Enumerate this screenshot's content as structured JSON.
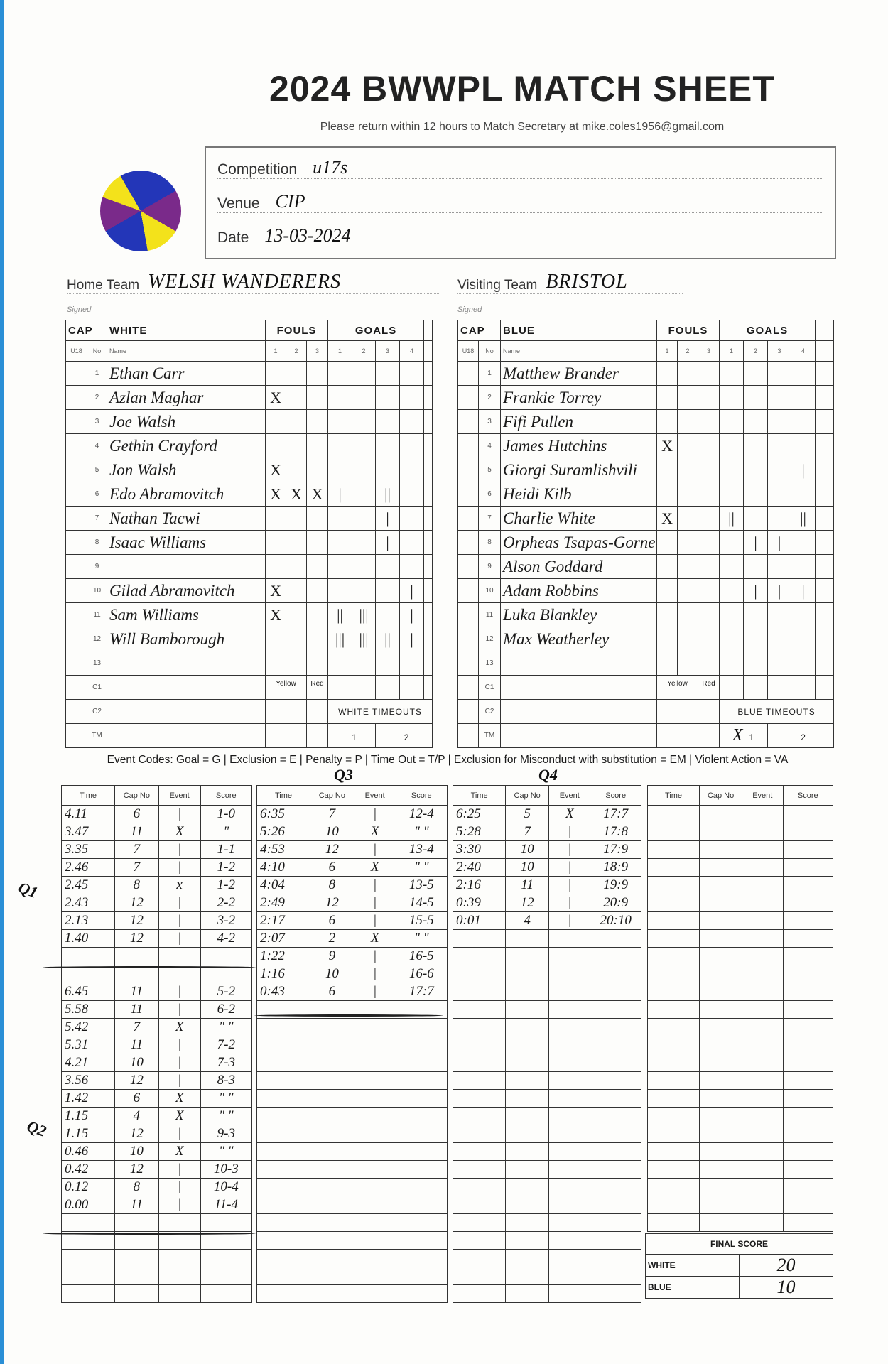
{
  "header": {
    "title": "2024 BWWPL MATCH SHEET",
    "subtitle": "Please return within 12 hours to Match Secretary  at mike.coles1956@gmail.com"
  },
  "info": {
    "competition_label": "Competition",
    "competition": "u17s",
    "venue_label": "Venue",
    "venue": "CIP",
    "date_label": "Date",
    "date": "13-03-2024"
  },
  "teams": {
    "home_label": "Home Team",
    "home": "WELSH WANDERERS",
    "visiting_label": "Visiting Team",
    "visiting": "BRISTOL",
    "signed_label": "Signed"
  },
  "colors": {
    "ball": [
      "#2336b8",
      "#7a2a8a",
      "#f3e21b"
    ]
  },
  "rosters": [
    {
      "cap_label": "CAP",
      "team_label": "WHITE",
      "fouls_label": "FOULS",
      "goals_label": "GOALS",
      "u18_label": "U18",
      "no_label": "No",
      "name_label": "Name",
      "yellow_label": "Yellow",
      "red_label": "Red",
      "timeouts_label": "WHITE TIMEOUTS",
      "timeouts": [
        "1",
        "2"
      ],
      "players": [
        {
          "no": "1",
          "name": "Ethan Carr",
          "fouls": [
            "",
            "",
            ""
          ],
          "goals": [
            "",
            "",
            "",
            ""
          ]
        },
        {
          "no": "2",
          "name": "Azlan Maghar",
          "fouls": [
            "X",
            "",
            ""
          ],
          "goals": [
            "",
            "",
            "",
            ""
          ]
        },
        {
          "no": "3",
          "name": "Joe Walsh",
          "fouls": [
            "",
            "",
            ""
          ],
          "goals": [
            "",
            "",
            "",
            ""
          ]
        },
        {
          "no": "4",
          "name": "Gethin Crayford",
          "fouls": [
            "",
            "",
            ""
          ],
          "goals": [
            "",
            "",
            "",
            ""
          ]
        },
        {
          "no": "5",
          "name": "Jon Walsh",
          "fouls": [
            "X",
            "",
            ""
          ],
          "goals": [
            "",
            "",
            "",
            ""
          ]
        },
        {
          "no": "6",
          "name": "Edo Abramovitch",
          "fouls": [
            "X",
            "X",
            "X"
          ],
          "goals": [
            "|",
            "",
            "||",
            ""
          ]
        },
        {
          "no": "7",
          "name": "Nathan Tacwi",
          "fouls": [
            "",
            "",
            ""
          ],
          "goals": [
            "",
            "",
            "|",
            ""
          ]
        },
        {
          "no": "8",
          "name": "Isaac Williams",
          "fouls": [
            "",
            "",
            ""
          ],
          "goals": [
            "",
            "",
            "|",
            ""
          ]
        },
        {
          "no": "9",
          "name": "",
          "fouls": [
            "",
            "",
            ""
          ],
          "goals": [
            "",
            "",
            "",
            ""
          ]
        },
        {
          "no": "10",
          "name": "Gilad Abramovitch",
          "fouls": [
            "X",
            "",
            ""
          ],
          "goals": [
            "",
            "",
            "",
            "|"
          ]
        },
        {
          "no": "11",
          "name": "Sam Williams",
          "fouls": [
            "X",
            "",
            ""
          ],
          "goals": [
            "||",
            "|||",
            "",
            "|"
          ]
        },
        {
          "no": "12",
          "name": "Will Bamborough",
          "fouls": [
            "",
            "",
            ""
          ],
          "goals": [
            "|||",
            "|||",
            "||",
            "|"
          ]
        },
        {
          "no": "13",
          "name": "",
          "fouls": [
            "",
            "",
            ""
          ],
          "goals": [
            "",
            "",
            "",
            ""
          ]
        }
      ],
      "staff": [
        "C1",
        "C2",
        "TM"
      ],
      "timeout_marks": [
        "",
        ""
      ]
    },
    {
      "cap_label": "CAP",
      "team_label": "BLUE",
      "fouls_label": "FOULS",
      "goals_label": "GOALS",
      "u18_label": "U18",
      "no_label": "No",
      "name_label": "Name",
      "yellow_label": "Yellow",
      "red_label": "Red",
      "timeouts_label": "BLUE TIMEOUTS",
      "timeouts": [
        "1",
        "2"
      ],
      "players": [
        {
          "no": "1",
          "name": "Matthew Brander",
          "fouls": [
            "",
            "",
            ""
          ],
          "goals": [
            "",
            "",
            "",
            ""
          ]
        },
        {
          "no": "2",
          "name": "Frankie Torrey",
          "fouls": [
            "",
            "",
            ""
          ],
          "goals": [
            "",
            "",
            "",
            ""
          ]
        },
        {
          "no": "3",
          "name": "Fifi Pullen",
          "fouls": [
            "",
            "",
            ""
          ],
          "goals": [
            "",
            "",
            "",
            ""
          ]
        },
        {
          "no": "4",
          "name": "James Hutchins",
          "fouls": [
            "X",
            "",
            ""
          ],
          "goals": [
            "",
            "",
            "",
            ""
          ]
        },
        {
          "no": "5",
          "name": "Giorgi Suramlishvili",
          "fouls": [
            "",
            "",
            ""
          ],
          "goals": [
            "",
            "",
            "",
            "|"
          ]
        },
        {
          "no": "6",
          "name": "Heidi Kilb",
          "fouls": [
            "",
            "",
            ""
          ],
          "goals": [
            "",
            "",
            "",
            ""
          ]
        },
        {
          "no": "7",
          "name": "Charlie White",
          "fouls": [
            "X",
            "",
            ""
          ],
          "goals": [
            "||",
            "",
            "",
            "||"
          ]
        },
        {
          "no": "8",
          "name": "Orpheas Tsapas-Gornelis",
          "fouls": [
            "",
            "",
            ""
          ],
          "goals": [
            "",
            "|",
            "|",
            ""
          ]
        },
        {
          "no": "9",
          "name": "Alson Goddard",
          "fouls": [
            "",
            "",
            ""
          ],
          "goals": [
            "",
            "",
            "",
            ""
          ]
        },
        {
          "no": "10",
          "name": "Adam Robbins",
          "fouls": [
            "",
            "",
            ""
          ],
          "goals": [
            "",
            "|",
            "|",
            "|"
          ]
        },
        {
          "no": "11",
          "name": "Luka Blankley",
          "fouls": [
            "",
            "",
            ""
          ],
          "goals": [
            "",
            "",
            "",
            ""
          ]
        },
        {
          "no": "12",
          "name": "Max Weatherley",
          "fouls": [
            "",
            "",
            ""
          ],
          "goals": [
            "",
            "",
            "",
            ""
          ]
        },
        {
          "no": "13",
          "name": "",
          "fouls": [
            "",
            "",
            ""
          ],
          "goals": [
            "",
            "",
            "",
            ""
          ]
        }
      ],
      "staff": [
        "C1",
        "C2",
        "TM"
      ],
      "timeout_marks": [
        "X",
        ""
      ]
    }
  ],
  "event_codes": "Event Codes: Goal = G | Exclusion = E | Penalty = P | Time Out = T/P | Exclusion for Misconduct with substitution = EM | Violent Action = VA",
  "quarter_labels": {
    "q1": "Q1",
    "q2": "Q2",
    "q3": "Q3",
    "q4": "Q4"
  },
  "event_headers": [
    "Time",
    "Cap No",
    "Event",
    "Score"
  ],
  "event_tables": [
    {
      "rows": [
        [
          "4.11",
          "6",
          "|",
          "1-0"
        ],
        [
          "3.47",
          "11",
          "X",
          "\""
        ],
        [
          "3.35",
          "7",
          "|",
          "1-1"
        ],
        [
          "2.46",
          "7",
          "|",
          "1-2"
        ],
        [
          "2.45",
          "8",
          "x",
          "1-2"
        ],
        [
          "2.43",
          "12",
          "|",
          "2-2"
        ],
        [
          "2.13",
          "12",
          "|",
          "3-2"
        ],
        [
          "1.40",
          "12",
          "|",
          "4-2"
        ],
        [
          "",
          "",
          "",
          ""
        ],
        [
          "",
          "",
          "",
          ""
        ],
        [
          "6.45",
          "11",
          "|",
          "5-2"
        ],
        [
          "5.58",
          "11",
          "|",
          "6-2"
        ],
        [
          "5.42",
          "7",
          "X",
          "\" \""
        ],
        [
          "5.31",
          "11",
          "|",
          "7-2"
        ],
        [
          "4.21",
          "10",
          "|",
          "7-3"
        ],
        [
          "3.56",
          "12",
          "|",
          "8-3"
        ],
        [
          "1.42",
          "6",
          "X",
          "\" \""
        ],
        [
          "1.15",
          "4",
          "X",
          "\" \""
        ],
        [
          "1.15",
          "12",
          "|",
          "9-3"
        ],
        [
          "0.46",
          "10",
          "X",
          "\" \""
        ],
        [
          "0.42",
          "12",
          "|",
          "10-3"
        ],
        [
          "0.12",
          "8",
          "|",
          "10-4"
        ],
        [
          "0.00",
          "11",
          "|",
          "11-4"
        ]
      ],
      "total_rows": 28
    },
    {
      "rows": [
        [
          "6:35",
          "7",
          "|",
          "12-4"
        ],
        [
          "5:26",
          "10",
          "X",
          "\" \""
        ],
        [
          "4:53",
          "12",
          "|",
          "13-4"
        ],
        [
          "4:10",
          "6",
          "X",
          "\" \""
        ],
        [
          "4:04",
          "8",
          "|",
          "13-5"
        ],
        [
          "2:49",
          "12",
          "|",
          "14-5"
        ],
        [
          "2:17",
          "6",
          "|",
          "15-5"
        ],
        [
          "2:07",
          "2",
          "X",
          "\" \""
        ],
        [
          "1:22",
          "9",
          "|",
          "16-5"
        ],
        [
          "1:16",
          "10",
          "|",
          "16-6"
        ],
        [
          "0:43",
          "6",
          "|",
          "17:7"
        ]
      ],
      "total_rows": 28
    },
    {
      "rows": [
        [
          "6:25",
          "5",
          "X",
          "17:7"
        ],
        [
          "5:28",
          "7",
          "|",
          "17:8"
        ],
        [
          "3:30",
          "10",
          "|",
          "17:9"
        ],
        [
          "2:40",
          "10",
          "|",
          "18:9"
        ],
        [
          "2:16",
          "11",
          "|",
          "19:9"
        ],
        [
          "0:39",
          "12",
          "|",
          "20:9"
        ],
        [
          "0:01",
          "4",
          "|",
          "20:10"
        ]
      ],
      "total_rows": 28
    },
    {
      "rows": [],
      "total_rows": 24
    }
  ],
  "final_score": {
    "label": "FINAL SCORE",
    "white_label": "WHITE",
    "white": "20",
    "blue_label": "BLUE",
    "blue": "10"
  }
}
